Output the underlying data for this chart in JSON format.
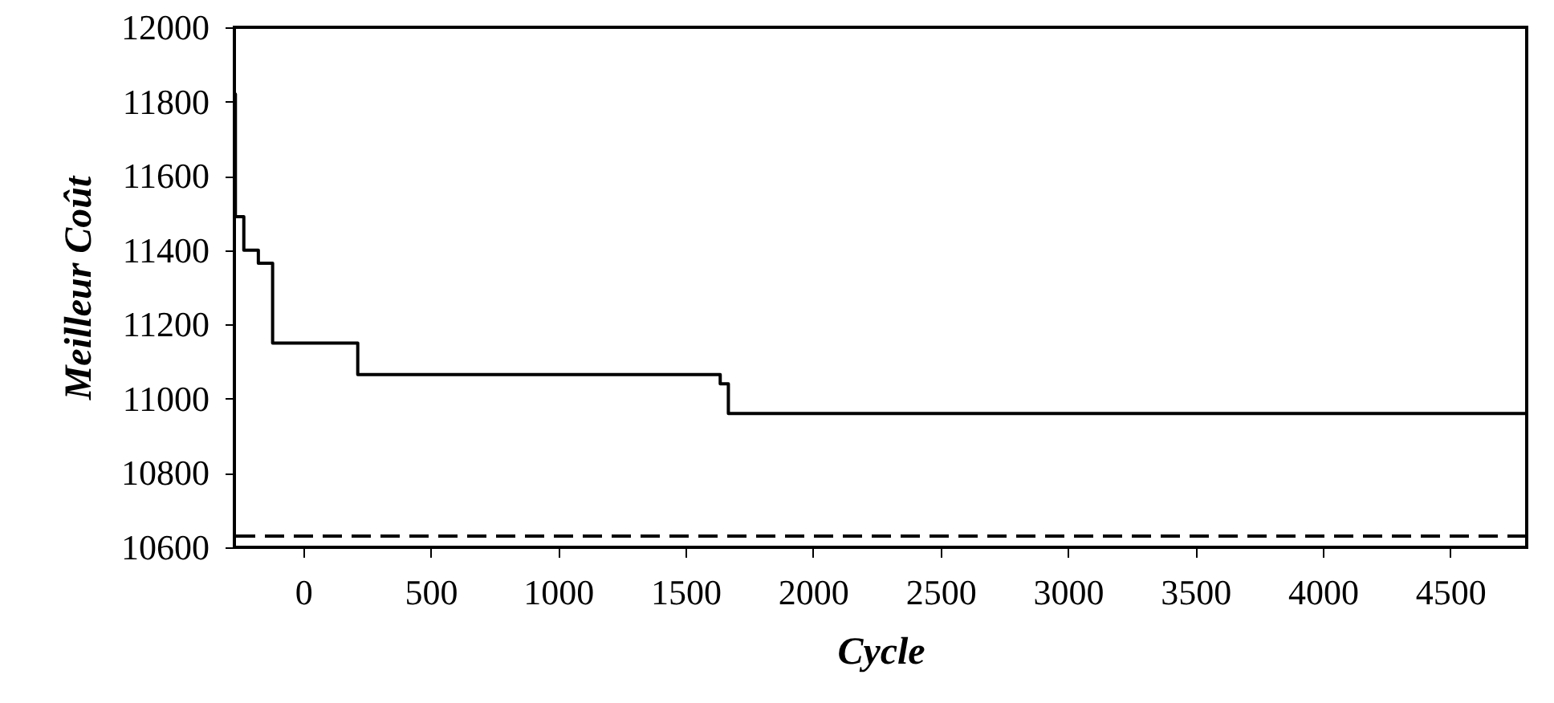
{
  "chart_data": {
    "type": "step",
    "xlabel": "Cycle",
    "ylabel": "Meilleur Coût",
    "x": [
      -270,
      -266,
      -233,
      -176,
      -120,
      214,
      1636,
      1668,
      4800
    ],
    "series": [
      {
        "color": "#000000",
        "values": [
          11820,
          11490,
          11400,
          11365,
          11150,
          11065,
          11040,
          10960,
          10960
        ]
      }
    ],
    "xlim": [
      -270,
      4800
    ],
    "xticks": [
      0,
      500,
      1000,
      1500,
      2000,
      2500,
      3000,
      3500,
      4000,
      4500
    ],
    "ylim": [
      10600,
      12000
    ],
    "yticks": [
      10600,
      10800,
      11000,
      11200,
      11400,
      11600,
      11800,
      12000
    ],
    "ref_lines": [
      {
        "axis": "y",
        "value": 10630,
        "color": "#000000",
        "line_style": "dashed"
      }
    ],
    "grid": false,
    "marker": "none",
    "line_style": "solid"
  }
}
